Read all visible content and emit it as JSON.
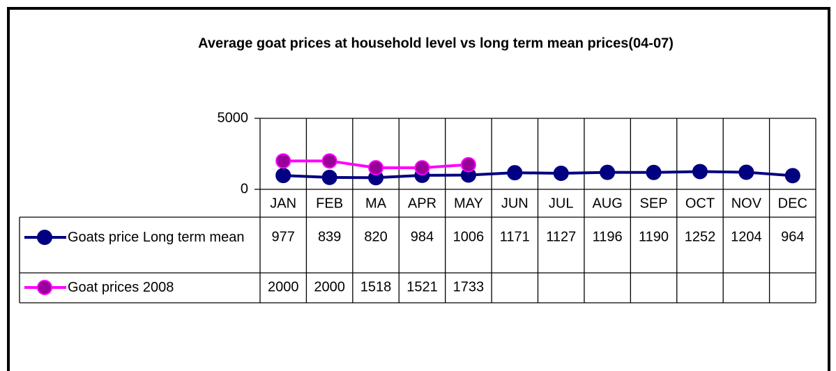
{
  "chart_data": {
    "type": "line",
    "title": "Average goat prices at household level vs long term mean prices(04-07)",
    "categories": [
      "JAN",
      "FEB",
      "MA",
      "APR",
      "MAY",
      "JUN",
      "JUL",
      "AUG",
      "SEP",
      "OCT",
      "NOV",
      "DEC"
    ],
    "series": [
      {
        "name": "Goats price Long term mean",
        "color": "#000080",
        "marker_color": "#000080",
        "values": [
          977,
          839,
          820,
          984,
          1006,
          1171,
          1127,
          1196,
          1190,
          1252,
          1204,
          964
        ]
      },
      {
        "name": "Goat prices 2008",
        "color": "#ff00ff",
        "marker_color": "#990099",
        "values": [
          2000,
          2000,
          1518,
          1521,
          1733,
          null,
          null,
          null,
          null,
          null,
          null,
          null
        ]
      }
    ],
    "ylim": [
      0,
      5000
    ],
    "yticks": [
      0,
      5000
    ],
    "grid": true
  }
}
